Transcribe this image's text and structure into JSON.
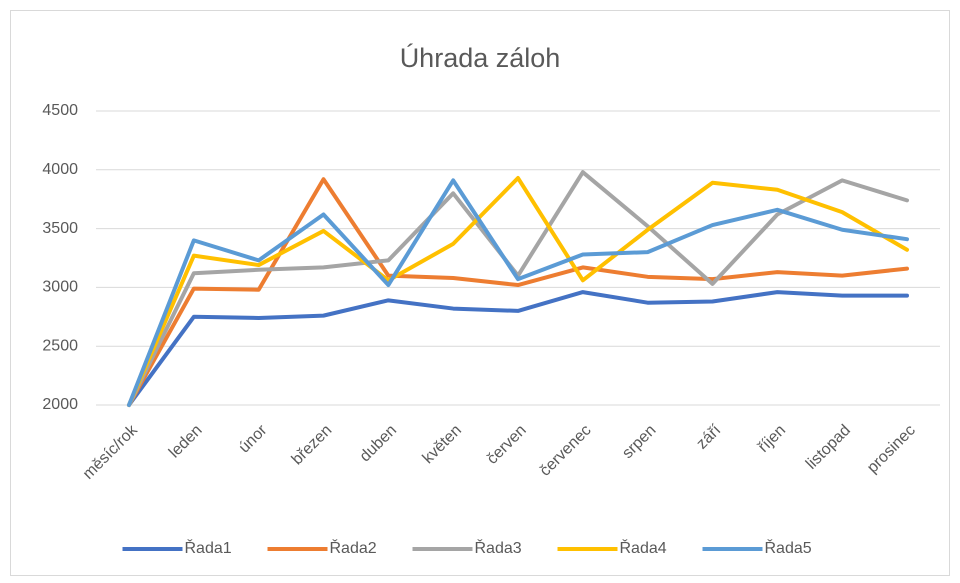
{
  "chart_data": {
    "type": "line",
    "title": "Úhrada záloh",
    "categories": [
      "měsíc/rok",
      "leden",
      "únor",
      "březen",
      "duben",
      "květen",
      "červen",
      "červenec",
      "srpen",
      "září",
      "říjen",
      "listopad",
      "prosinec"
    ],
    "series": [
      {
        "name": "Řada1",
        "color": "#4472c4",
        "values": [
          2000,
          2750,
          2740,
          2760,
          2890,
          2820,
          2800,
          2960,
          2870,
          2880,
          2960,
          2930,
          2930
        ]
      },
      {
        "name": "Řada2",
        "color": "#ed7d31",
        "values": [
          2000,
          2990,
          2980,
          3920,
          3100,
          3080,
          3020,
          3170,
          3090,
          3070,
          3130,
          3100,
          3160
        ]
      },
      {
        "name": "Řada3",
        "color": "#a5a5a5",
        "values": [
          2000,
          3120,
          3150,
          3170,
          3230,
          3800,
          3100,
          3980,
          3520,
          3030,
          3620,
          3910,
          3740
        ]
      },
      {
        "name": "Řada4",
        "color": "#ffc000",
        "values": [
          2000,
          3270,
          3190,
          3480,
          3060,
          3370,
          3930,
          3060,
          3490,
          3890,
          3830,
          3640,
          3320
        ]
      },
      {
        "name": "Řada5",
        "color": "#5b9bd5",
        "values": [
          2000,
          3400,
          3230,
          3620,
          3020,
          3910,
          3070,
          3280,
          3300,
          3530,
          3660,
          3490,
          3410
        ]
      }
    ],
    "ylim": [
      2000,
      4500
    ],
    "yticks": [
      2000,
      2500,
      3000,
      3500,
      4000,
      4500
    ],
    "grid": true,
    "legend": "bottom"
  }
}
